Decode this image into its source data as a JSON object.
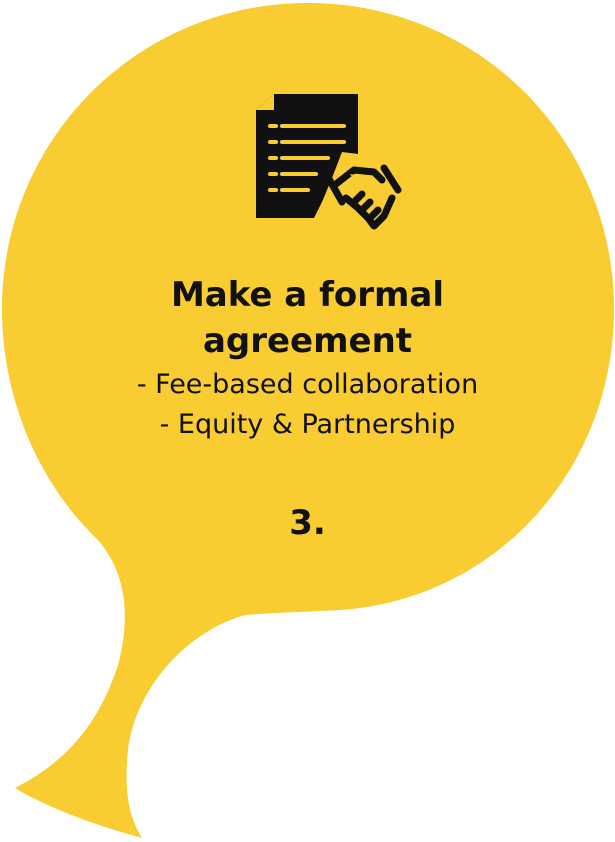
{
  "colors": {
    "bubble": "#F9CC31",
    "text": "#111111",
    "icon": "#111111",
    "background": "#FFFFFF"
  },
  "icon": {
    "name": "contract-handshake-icon"
  },
  "card": {
    "title_line_1": "Make a formal",
    "title_line_2": "agreement",
    "options": [
      "- Fee-based collaboration",
      "- Equity & Partnership"
    ],
    "step_number": "3."
  }
}
